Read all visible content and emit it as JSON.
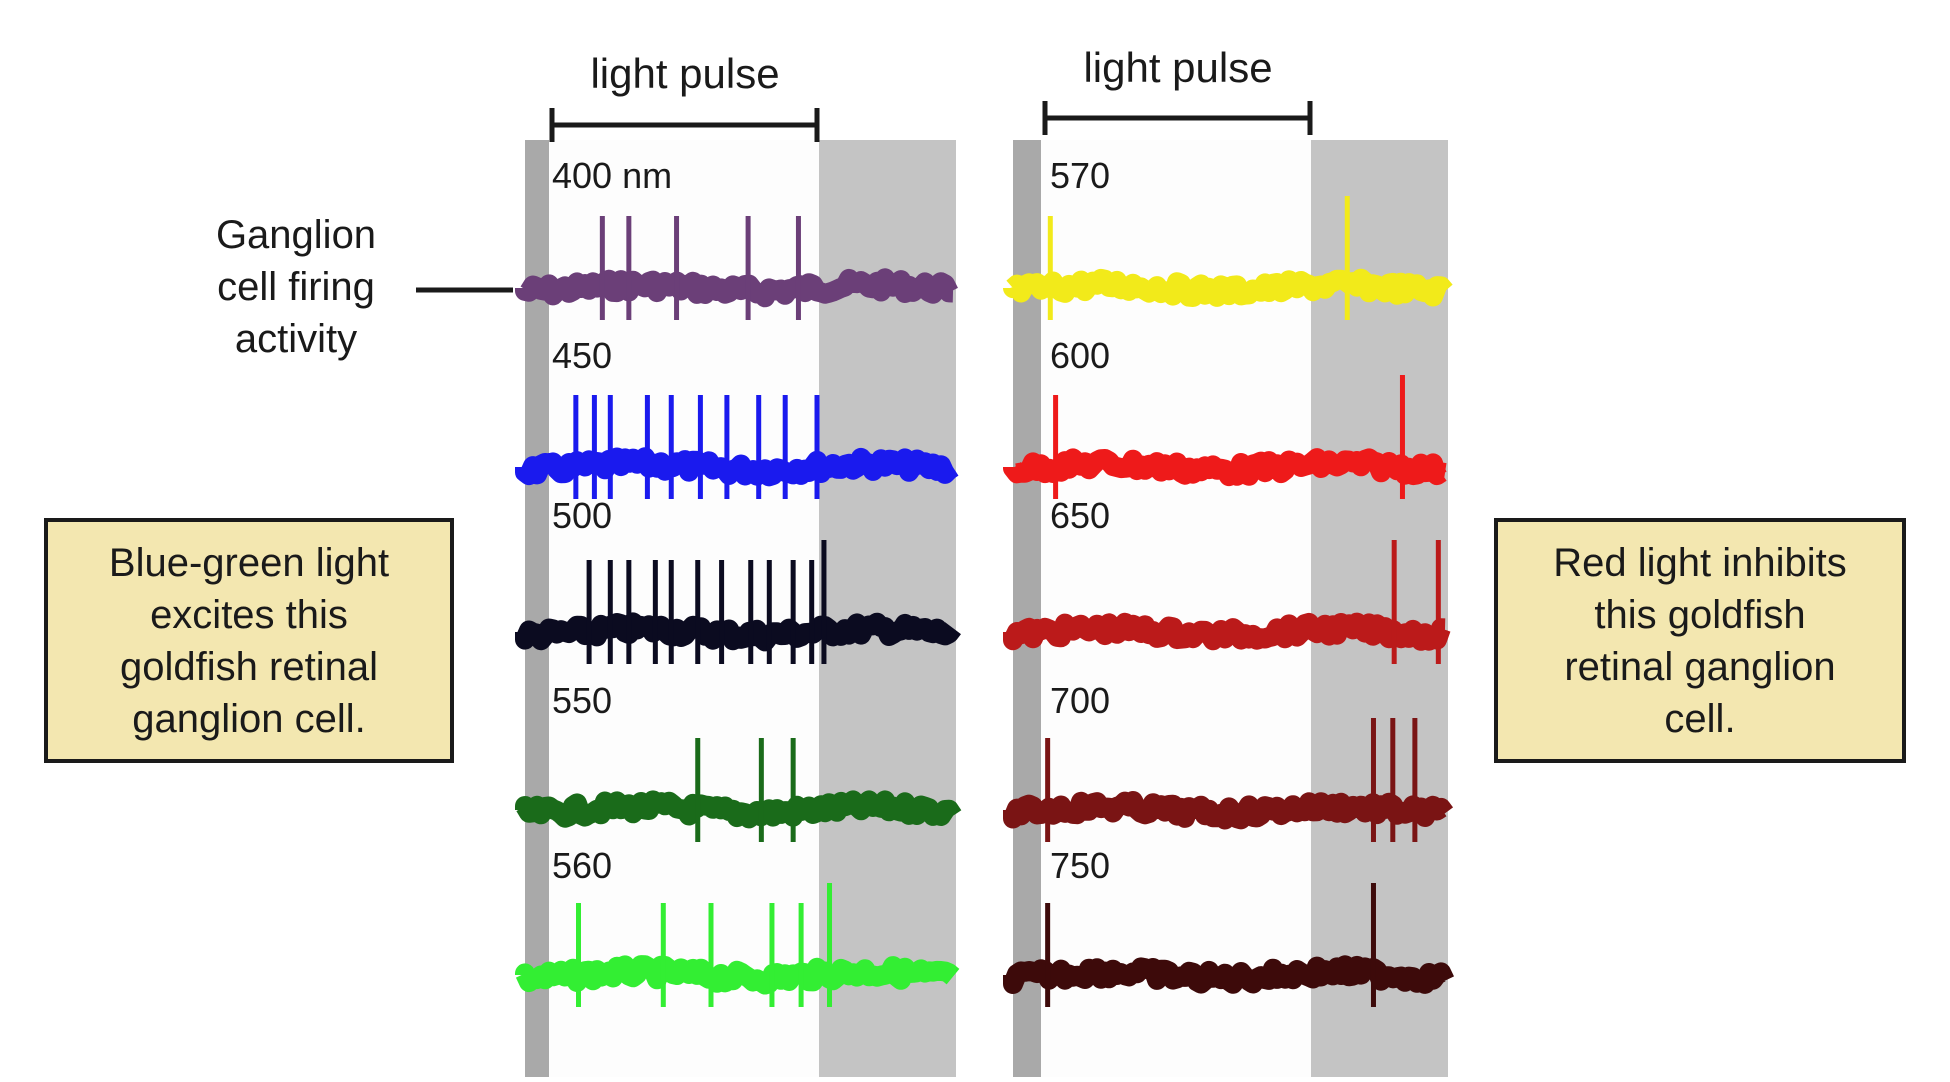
{
  "pulse_label_left": "light pulse",
  "pulse_label_right": "light pulse",
  "firing_label": [
    "Ganglion",
    "cell firing",
    "activity"
  ],
  "callout_left": [
    "Blue-green light",
    "excites this",
    "goldfish retinal",
    "ganglion cell."
  ],
  "callout_right": [
    "Red light inhibits",
    "this goldfish",
    "retinal ganglion",
    "cell."
  ],
  "panels": [
    {
      "id": "left",
      "traces": [
        {
          "label": "400 nm",
          "color": "#6b3f78",
          "spikes": [
            0.19,
            0.29,
            0.47,
            0.74,
            0.93
          ],
          "post_spikes": []
        },
        {
          "label": "450",
          "color": "#1a1aee",
          "spikes": [
            0.09,
            0.16,
            0.22,
            0.36,
            0.45,
            0.56,
            0.66,
            0.78,
            0.88,
            1.0
          ],
          "post_spikes": []
        },
        {
          "label": "500",
          "color": "#0b0b20",
          "spikes": [
            0.14,
            0.22,
            0.29,
            0.39,
            0.45,
            0.55,
            0.64,
            0.75,
            0.82,
            0.91,
            0.98
          ],
          "post_spikes": [
            0.05
          ]
        },
        {
          "label": "550",
          "color": "#1a6b1a",
          "spikes": [
            0.55,
            0.79,
            0.91
          ],
          "post_spikes": []
        },
        {
          "label": "560",
          "color": "#33ee33",
          "spikes": [
            0.1,
            0.42,
            0.6,
            0.83,
            0.94
          ],
          "post_spikes": [
            0.09
          ]
        }
      ]
    },
    {
      "id": "right",
      "traces": [
        {
          "label": "570",
          "color": "#f2ea1a",
          "spikes": [
            0.02
          ],
          "post_spikes": [
            0.27
          ]
        },
        {
          "label": "600",
          "color": "#ee1a1a",
          "spikes": [
            0.04
          ],
          "post_spikes": [
            0.67
          ]
        },
        {
          "label": "650",
          "color": "#bb1a1a",
          "spikes": [],
          "post_spikes": [
            0.61,
            0.93
          ]
        },
        {
          "label": "700",
          "color": "#7a1414",
          "spikes": [
            0.01
          ],
          "post_spikes": [
            0.46,
            0.6,
            0.76
          ]
        },
        {
          "label": "750",
          "color": "#3d0a0a",
          "spikes": [
            0.01
          ],
          "post_spikes": [
            0.46
          ]
        }
      ]
    }
  ]
}
